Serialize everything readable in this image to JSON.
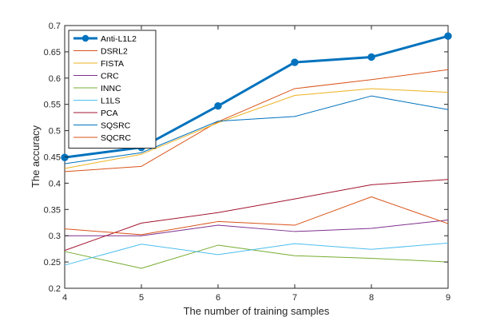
{
  "chart_data": {
    "type": "line",
    "xlabel": "The number of training samples",
    "ylabel": "The accuracy",
    "x": [
      4,
      5,
      6,
      7,
      8,
      9
    ],
    "xlim": [
      4,
      9
    ],
    "ylim": [
      0.2,
      0.7
    ],
    "xticks": [
      "4",
      "5",
      "6",
      "7",
      "8",
      "9"
    ],
    "yticks": [
      "0.2",
      "0.25",
      "0.3",
      "0.35",
      "0.4",
      "0.45",
      "0.5",
      "0.55",
      "0.6",
      "0.65",
      "0.7"
    ],
    "grid": false,
    "legend_position": "top-left",
    "series": [
      {
        "name": "Anti-L1L2",
        "color": "#0072bd",
        "marker": "filled-circle",
        "bold": true,
        "values": [
          0.449,
          0.468,
          0.547,
          0.63,
          0.64,
          0.68
        ]
      },
      {
        "name": "DSRL2",
        "color": "#d95319",
        "values": [
          0.422,
          0.432,
          0.517,
          0.58,
          0.597,
          0.616
        ]
      },
      {
        "name": "FISTA",
        "color": "#edb120",
        "values": [
          0.428,
          0.455,
          0.515,
          0.567,
          0.58,
          0.573
        ]
      },
      {
        "name": "CRC",
        "color": "#7e2f8e",
        "values": [
          0.3,
          0.3,
          0.32,
          0.308,
          0.314,
          0.33
        ]
      },
      {
        "name": "INNC",
        "color": "#77ac30",
        "values": [
          0.27,
          0.238,
          0.282,
          0.262,
          0.257,
          0.25
        ]
      },
      {
        "name": "L1LS",
        "color": "#4dbeee",
        "values": [
          0.244,
          0.284,
          0.264,
          0.285,
          0.274,
          0.286
        ]
      },
      {
        "name": "PCA",
        "color": "#a2142f",
        "values": [
          0.272,
          0.324,
          0.344,
          0.37,
          0.397,
          0.407
        ]
      },
      {
        "name": "SQSRC",
        "color": "#0072bd",
        "values": [
          0.437,
          0.458,
          0.518,
          0.527,
          0.566,
          0.54
        ]
      },
      {
        "name": "SQCRC",
        "color": "#d95319",
        "values": [
          0.313,
          0.302,
          0.327,
          0.32,
          0.374,
          0.323
        ]
      }
    ]
  }
}
